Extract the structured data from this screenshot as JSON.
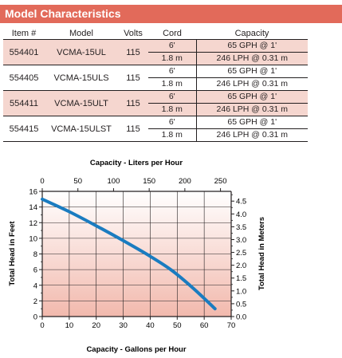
{
  "title": "Model Characteristics",
  "table": {
    "headers": [
      "Item #",
      "Model",
      "Volts",
      "Cord",
      "Capacity"
    ],
    "rows": [
      {
        "item": "554401",
        "model": "VCMA-15UL",
        "volts": "115",
        "cord_ft": "6'",
        "cord_m": "1.8 m",
        "cap_gph": "65 GPH @ 1'",
        "cap_lph": "246 LPH @ 0.31 m"
      },
      {
        "item": "554405",
        "model": "VCMA-15ULS",
        "volts": "115",
        "cord_ft": "6'",
        "cord_m": "1.8 m",
        "cap_gph": "65 GPH @ 1'",
        "cap_lph": "246 LPH @ 0.31 m"
      },
      {
        "item": "554411",
        "model": "VCMA-15ULT",
        "volts": "115",
        "cord_ft": "6'",
        "cord_m": "1.8 m",
        "cap_gph": "65 GPH @ 1'",
        "cap_lph": "246 LPH @ 0.31 m"
      },
      {
        "item": "554415",
        "model": "VCMA-15ULST",
        "volts": "115",
        "cord_ft": "6'",
        "cord_m": "1.8 m",
        "cap_gph": "65 GPH @ 1'",
        "cap_lph": "246 LPH @ 0.31 m"
      }
    ]
  },
  "colors": {
    "header": "#e26a5a",
    "shade": "#f5d6cf",
    "curve": "#1a7cc0"
  },
  "chart_data": {
    "type": "line",
    "xlabel": "Capacity - Gallons per Hour",
    "ylabel": "Total Head in Feet",
    "x2label": "Capacity - Liters per Hour",
    "y2label": "Total Head in Meters",
    "xlim": [
      0,
      70
    ],
    "ylim": [
      0,
      16
    ],
    "x2lim": [
      0,
      265
    ],
    "y2lim": [
      0,
      4.88
    ],
    "xticks": [
      "0",
      "10",
      "20",
      "30",
      "40",
      "50",
      "60",
      "70"
    ],
    "yticks": [
      "0",
      "2",
      "4",
      "6",
      "8",
      "10",
      "12",
      "14",
      "16"
    ],
    "x2ticks": [
      "0",
      "50",
      "100",
      "150",
      "200",
      "250"
    ],
    "y2ticks": [
      "0.0",
      "0.5",
      "1.0",
      "1.5",
      "2.0",
      "2.5",
      "3.0",
      "3.5",
      "4.0",
      "4.5"
    ],
    "grid": true,
    "series": [
      {
        "x": [
          0,
          10,
          20,
          30,
          40,
          48,
          56,
          64
        ],
        "y": [
          15,
          13.4,
          11.6,
          9.7,
          7.7,
          5.9,
          3.6,
          1.0
        ]
      }
    ]
  }
}
